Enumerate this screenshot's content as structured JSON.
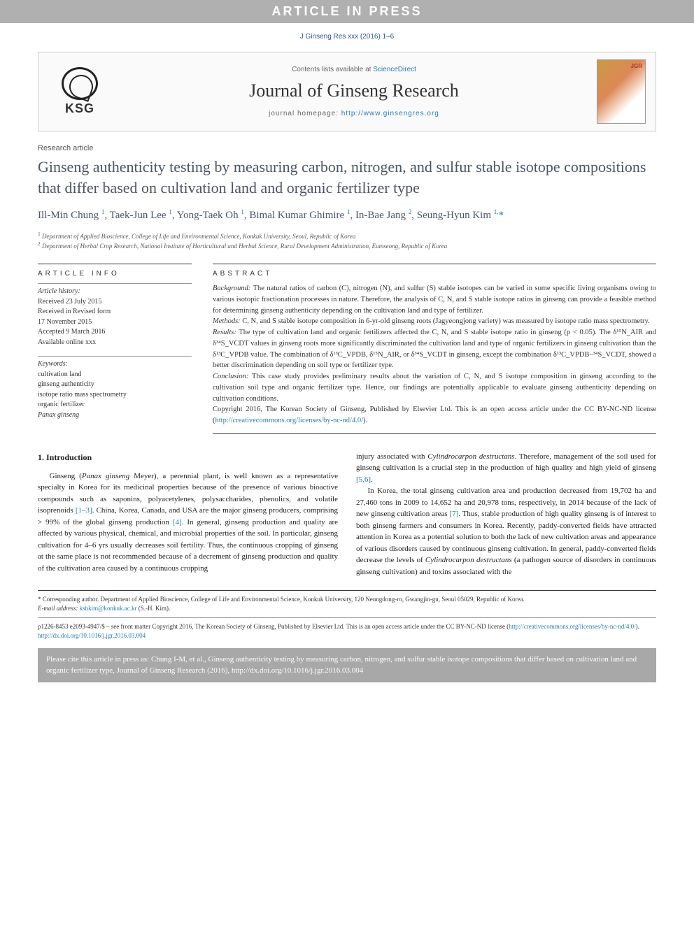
{
  "banner": {
    "text": "ARTICLE IN PRESS"
  },
  "citation_line": "J Ginseng Res xxx (2016) 1–6",
  "journal_header": {
    "logo_text": "KSG",
    "contents_prefix": "Contents lists available at ",
    "contents_link": "ScienceDirect",
    "journal_name": "Journal of Ginseng Research",
    "homepage_prefix": "journal homepage: ",
    "homepage_url": "http://www.ginsengres.org",
    "cover_label": "JGR"
  },
  "article_type": "Research article",
  "title": "Ginseng authenticity testing by measuring carbon, nitrogen, and sulfur stable isotope compositions that differ based on cultivation land and organic fertilizer type",
  "authors_html": "Ill-Min Chung <sup>1</sup>, Taek-Jun Lee <sup>1</sup>, Yong-Taek Oh <sup>1</sup>, Bimal Kumar Ghimire <sup>1</sup>, In-Bae Jang <sup>2</sup>, Seung-Hyun Kim <sup>1,</sup><span class='star'>*</span>",
  "affiliations": [
    {
      "num": "1",
      "text": "Department of Applied Bioscience, College of Life and Environmental Science, Konkuk University, Seoul, Republic of Korea"
    },
    {
      "num": "2",
      "text": "Department of Herbal Crop Research, National Institute of Horticultural and Herbal Science, Rural Development Administration, Eumseong, Republic of Korea"
    }
  ],
  "info": {
    "head": "ARTICLE INFO",
    "history_label": "Article history:",
    "history": [
      "Received 23 July 2015",
      "Received in Revised form",
      "17 November 2015",
      "Accepted 9 March 2016",
      "Available online xxx"
    ],
    "keywords_label": "Keywords:",
    "keywords": [
      {
        "t": "cultivation land",
        "ital": false
      },
      {
        "t": "ginseng authenticity",
        "ital": false
      },
      {
        "t": "isotope ratio mass spectrometry",
        "ital": false
      },
      {
        "t": "organic fertilizer",
        "ital": false
      },
      {
        "t": "Panax ginseng",
        "ital": true
      }
    ]
  },
  "abstract": {
    "head": "ABSTRACT",
    "background_label": "Background:",
    "background": "The natural ratios of carbon (C), nitrogen (N), and sulfur (S) stable isotopes can be varied in some specific living organisms owing to various isotopic fractionation processes in nature. Therefore, the analysis of C, N, and S stable isotope ratios in ginseng can provide a feasible method for determining ginseng authenticity depending on the cultivation land and type of fertilizer.",
    "methods_label": "Methods:",
    "methods": "C, N, and S stable isotope composition in 6-yr-old ginseng roots (Jagyeongjong variety) was measured by isotope ratio mass spectrometry.",
    "results_label": "Results:",
    "results": "The type of cultivation land and organic fertilizers affected the C, N, and S stable isotope ratio in ginseng (p < 0.05). The δ¹⁵N_AIR and δ³⁴S_VCDT values in ginseng roots more significantly discriminated the cultivation land and type of organic fertilizers in ginseng cultivation than the δ¹³C_VPDB value. The combination of δ¹³C_VPDB, δ¹⁵N_AIR, or δ³⁴S_VCDT in ginseng, except the combination δ¹³C_VPDB–³⁴S_VCDT, showed a better discrimination depending on soil type or fertilizer type.",
    "conclusion_label": "Conclusion:",
    "conclusion": "This case study provides preliminary results about the variation of C, N, and S isotope composition in ginseng according to the cultivation soil type and organic fertilizer type. Hence, our findings are potentially applicable to evaluate ginseng authenticity depending on cultivation conditions.",
    "copyright": "Copyright 2016, The Korean Society of Ginseng, Published by Elsevier Ltd. This is an open access article under the CC BY-NC-ND license (",
    "license_url": "http://creativecommons.org/licenses/by-nc-nd/4.0/",
    "copyright_close": ")."
  },
  "body": {
    "intro_head": "1.  Introduction",
    "col1_p1_a": "Ginseng (",
    "col1_p1_ital": "Panax ginseng",
    "col1_p1_b": " Meyer), a perennial plant, is well known as a representative specialty in Korea for its medicinal properties because of the presence of various bioactive compounds such as saponins, polyacetylenes, polysaccharides, phenolics, and volatile isoprenoids ",
    "col1_ref1": "[1–3]",
    "col1_p1_c": ". China, Korea, Canada, and USA are the major ginseng producers, comprising > 99% of the global ginseng production ",
    "col1_ref2": "[4]",
    "col1_p1_d": ". In general, ginseng production and quality are affected by various physical, chemical, and microbial properties of the soil. In particular, ginseng cultivation for 4–6 yrs usually decreases soil fertility. Thus, the continuous cropping of ginseng at the same place is not recommended because of a decrement of ginseng production and quality of the cultivation area caused by a continuous cropping",
    "col2_p1_a": "injury associated with ",
    "col2_p1_ital1": "Cylindrocarpon destructans",
    "col2_p1_b": ". Therefore, management of the soil used for ginseng cultivation is a crucial step in the production of high quality and high yield of ginseng ",
    "col2_ref1": "[5,6]",
    "col2_p1_c": ".",
    "col2_p2_a": "In Korea, the total ginseng cultivation area and production decreased from 19,702 ha and 27,460 tons in 2009 to 14,652 ha and 20,978 tons, respectively, in 2014 because of the lack of new ginseng cultivation areas ",
    "col2_ref2": "[7]",
    "col2_p2_b": ". Thus, stable production of high quality ginseng is of interest to both ginseng farmers and consumers in Korea. Recently, paddy-converted fields have attracted attention in Korea as a potential solution to both the lack of new cultivation areas and appearance of various disorders caused by continuous ginseng cultivation. In general, paddy-converted fields decrease the levels of ",
    "col2_p2_ital": "Cylindrocarpon destructans",
    "col2_p2_c": " (a pathogen source of disorders in continuous ginseng cultivation) and toxins associated with the"
  },
  "footnotes": {
    "corr": "* Corresponding author. Department of Applied Bioscience, College of Life and Environmental Science, Konkuk University, 120 Neungdong-ro, Gwangjin-gu, Seoul 05029, Republic of Korea.",
    "email_label": "E-mail address:",
    "email": "kshkim@konkuk.ac.kr",
    "email_suffix": " (S.-H. Kim).",
    "issn_line_a": "p1226-8453 e2093-4947/$ – see front matter Copyright 2016, The Korean Society of Ginseng, Published by Elsevier Ltd. This is an open access article under the CC BY-NC-ND license (",
    "issn_url": "http://creativecommons.org/licenses/by-nc-nd/4.0/",
    "issn_line_b": ").",
    "doi": "http://dx.doi.org/10.1016/j.jgr.2016.03.004"
  },
  "cite_box": "Please cite this article in press as: Chung I-M, et al., Ginseng authenticity testing by measuring carbon, nitrogen, and sulfur stable isotope compositions that differ based on cultivation land and organic fertilizer type, Journal of Ginseng Research (2016), http://dx.doi.org/10.1016/j.jgr.2016.03.004",
  "colors": {
    "banner_bg": "#b0b0b0",
    "link": "#2a7ab0",
    "title": "#4a5568",
    "citebox_bg": "#a8a8a8"
  }
}
